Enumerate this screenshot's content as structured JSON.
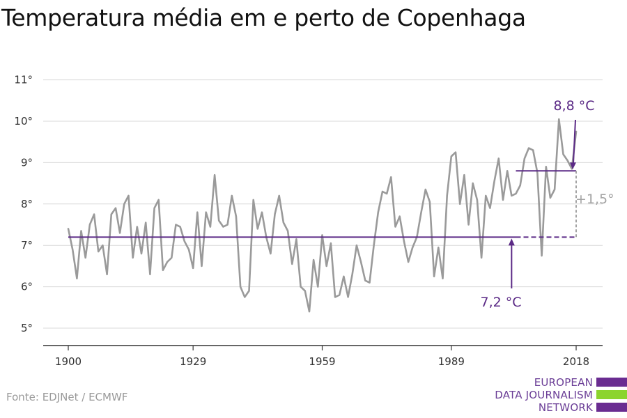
{
  "title": "Temperatura média em e perto de Copenhaga",
  "source": "Fonte: EDJNet / ECMWF",
  "logo": {
    "lines": [
      "EUROPEAN",
      "DATA JOURNALISM",
      "NETWORK"
    ],
    "colors": [
      "#6a2c91",
      "#8cd42e",
      "#6a2c91"
    ]
  },
  "colors": {
    "series": "#9a9a9a",
    "reference": "#5b2a86",
    "difference": "#a3a3a3",
    "grid": "#d9d9d9",
    "axis": "#333333"
  },
  "chart_data": {
    "type": "line",
    "title": "Temperatura média em e perto de Copenhaga",
    "xlabel": "",
    "ylabel": "",
    "xlim": [
      1900,
      2019
    ],
    "ylim": [
      4.6,
      11.3
    ],
    "x_ticks": [
      1900,
      1929,
      1959,
      1989,
      2018
    ],
    "x_tick_labels": [
      "1900",
      "1929",
      "1959",
      "1989",
      "2018"
    ],
    "y_ticks": [
      5,
      6,
      7,
      8,
      9,
      10,
      11
    ],
    "y_tick_labels": [
      "5°",
      "6°",
      "7°",
      "8°",
      "9°",
      "10°",
      "11°"
    ],
    "grid": "horizontal",
    "series": [
      {
        "x": [
          1900,
          1901,
          1902,
          1903,
          1904,
          1905,
          1906,
          1907,
          1908,
          1909,
          1910,
          1911,
          1912,
          1913,
          1914,
          1915,
          1916,
          1917,
          1918,
          1919,
          1920,
          1921,
          1922,
          1923,
          1924,
          1925,
          1926,
          1927,
          1928,
          1929,
          1930,
          1931,
          1932,
          1933,
          1934,
          1935,
          1936,
          1937,
          1938,
          1939,
          1940,
          1941,
          1942,
          1943,
          1944,
          1945,
          1946,
          1947,
          1948,
          1949,
          1950,
          1951,
          1952,
          1953,
          1954,
          1955,
          1956,
          1957,
          1958,
          1959,
          1960,
          1961,
          1962,
          1963,
          1964,
          1965,
          1966,
          1967,
          1968,
          1969,
          1970,
          1971,
          1972,
          1973,
          1974,
          1975,
          1976,
          1977,
          1978,
          1979,
          1980,
          1981,
          1982,
          1983,
          1984,
          1985,
          1986,
          1987,
          1988,
          1989,
          1990,
          1991,
          1992,
          1993,
          1994,
          1995,
          1996,
          1997,
          1998,
          1999,
          2000,
          2001,
          2002,
          2003,
          2004,
          2005,
          2006,
          2007,
          2008,
          2009,
          2010,
          2011,
          2012,
          2013,
          2014,
          2015,
          2016,
          2017,
          2018
        ],
        "values": [
          7.4,
          6.9,
          6.2,
          7.35,
          6.7,
          7.5,
          7.75,
          6.85,
          7.0,
          6.3,
          7.75,
          7.9,
          7.3,
          8.0,
          8.2,
          6.7,
          7.45,
          6.8,
          7.55,
          6.3,
          7.9,
          8.1,
          6.4,
          6.6,
          6.7,
          7.5,
          7.45,
          7.1,
          6.9,
          6.45,
          7.8,
          6.5,
          7.8,
          7.45,
          8.7,
          7.6,
          7.45,
          7.5,
          8.2,
          7.7,
          6.0,
          5.75,
          5.9,
          8.1,
          7.4,
          7.8,
          7.2,
          6.8,
          7.75,
          8.2,
          7.55,
          7.35,
          6.55,
          7.15,
          6.0,
          5.9,
          5.4,
          6.65,
          6.0,
          7.25,
          6.5,
          7.05,
          5.75,
          5.8,
          6.25,
          5.75,
          6.3,
          7.0,
          6.6,
          6.15,
          6.1,
          7.0,
          7.8,
          8.3,
          8.25,
          8.65,
          7.45,
          7.7,
          7.1,
          6.6,
          6.95,
          7.2,
          7.8,
          8.35,
          8.05,
          6.25,
          6.95,
          6.2,
          8.2,
          9.15,
          9.25,
          8.0,
          8.7,
          7.5,
          8.5,
          8.1,
          6.7,
          8.2,
          7.9,
          8.55,
          9.1,
          8.1,
          8.8,
          8.2,
          8.25,
          8.45,
          9.1,
          9.35,
          9.3,
          8.75,
          6.75,
          8.9,
          8.15,
          8.35,
          10.05,
          9.2,
          9.05,
          8.85,
          9.75
        ]
      }
    ],
    "reference_lines": [
      {
        "label": "7,2 °C",
        "value": 7.2,
        "x_from": 1900,
        "x_to": 2018
      },
      {
        "label": "8,8 °C",
        "value": 8.8,
        "x_from": 2004,
        "x_to": 2018
      }
    ],
    "difference_label": "+1,5°"
  }
}
